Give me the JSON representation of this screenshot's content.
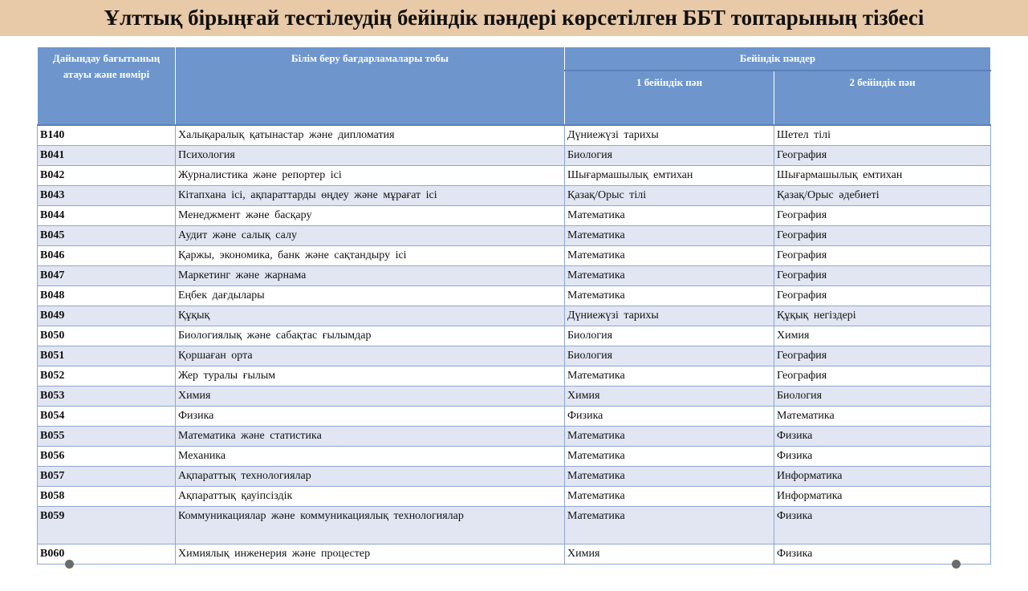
{
  "title": "Ұлттық бірыңғай тестілеудің бейіндік пәндері көрсетілген ББТ топтарының тізбесі",
  "table": {
    "headers": {
      "col1": "Дайындау бағытының атауы және нөмірі",
      "col2": "Білім беру бағдарламалары тобы",
      "group": "Бейіндік пәндер",
      "col3": "1 бейіндік пән",
      "col4": "2 бейіндік пән"
    },
    "rows": [
      {
        "code": "B140",
        "name": "Халықаралық қатынастар және дипломатия",
        "s1": "Дүниежүзі тарихы",
        "s2": "Шетел тілі"
      },
      {
        "code": "B041",
        "name": "Психология",
        "s1": "Биология",
        "s2": "География"
      },
      {
        "code": "B042",
        "name": "Журналистика және репортер ісі",
        "s1": "Шығармашылық емтихан",
        "s2": "Шығармашылық емтихан"
      },
      {
        "code": "B043",
        "name": "Кітапхана ісі, ақпараттарды өңдеу және мұрағат ісі",
        "s1": "Қазақ/Орыс тілі",
        "s2": "Қазақ/Орыс әдебиеті"
      },
      {
        "code": "B044",
        "name": "Менеджмент және басқару",
        "s1": "Математика",
        "s2": "География"
      },
      {
        "code": "B045",
        "name": "Аудит және салық салу",
        "s1": "Математика",
        "s2": "География"
      },
      {
        "code": "B046",
        "name": "Қаржы, экономика, банк және сақтандыру ісі",
        "s1": "Математика",
        "s2": "География"
      },
      {
        "code": "B047",
        "name": "Маркетинг және жарнама",
        "s1": "Математика",
        "s2": "География"
      },
      {
        "code": "B048",
        "name": "Еңбек дағдылары",
        "s1": "Математика",
        "s2": "География"
      },
      {
        "code": "B049",
        "name": "Құқық",
        "s1": "Дүниежүзі тарихы",
        "s2": "Құқық негіздері"
      },
      {
        "code": "B050",
        "name": "Биологиялық және сабақтас ғылымдар",
        "s1": "Биология",
        "s2": "Химия"
      },
      {
        "code": "B051",
        "name": "Қоршаған орта",
        "s1": "Биология",
        "s2": "География"
      },
      {
        "code": "B052",
        "name": "Жер туралы ғылым",
        "s1": "Математика",
        "s2": "География"
      },
      {
        "code": "B053",
        "name": "Химия",
        "s1": "Химия",
        "s2": "Биология"
      },
      {
        "code": "B054",
        "name": "Физика",
        "s1": "Физика",
        "s2": "Математика"
      },
      {
        "code": "B055",
        "name": "Математика және статистика",
        "s1": "Математика",
        "s2": "Физика"
      },
      {
        "code": "B056",
        "name": "Механика",
        "s1": "Математика",
        "s2": "Физика"
      },
      {
        "code": "B057",
        "name": "Ақпараттық технологиялар",
        "s1": "Математика",
        "s2": "Информатика"
      },
      {
        "code": "B058",
        "name": "Ақпараттық қауіпсіздік",
        "s1": "Математика",
        "s2": "Информатика"
      },
      {
        "code": "B059",
        "name": "Коммуникациялар және коммуникациялық технологиялар",
        "s1": "Математика",
        "s2": "Физика"
      },
      {
        "code": "B060",
        "name": "Химиялық инженерия және процестер",
        "s1": "Химия",
        "s2": "Физика"
      }
    ]
  },
  "colors": {
    "title_bg": "#e8c9a8",
    "header_bg": "#6e95cc",
    "row_alt_bg": "#e1e6f2"
  }
}
